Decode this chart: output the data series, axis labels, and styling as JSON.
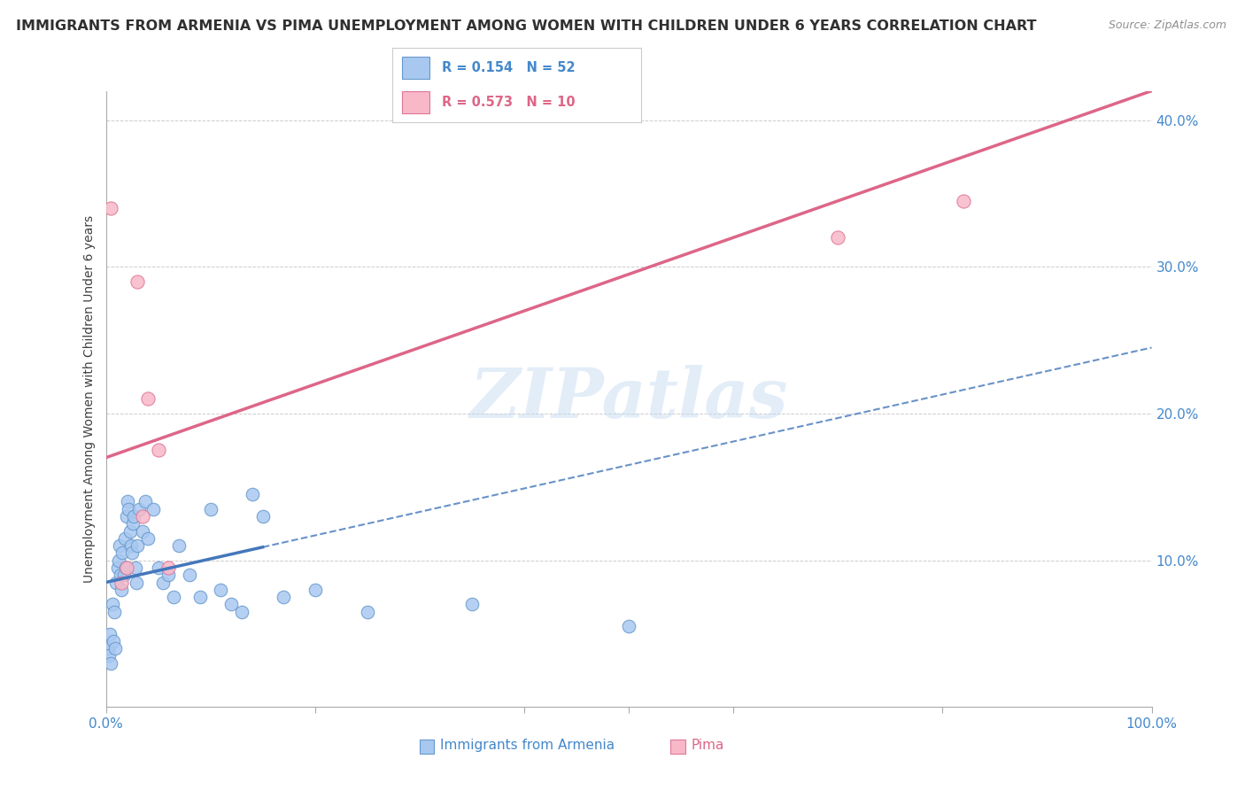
{
  "title": "IMMIGRANTS FROM ARMENIA VS PIMA UNEMPLOYMENT AMONG WOMEN WITH CHILDREN UNDER 6 YEARS CORRELATION CHART",
  "source": "Source: ZipAtlas.com",
  "ylabel": "Unemployment Among Women with Children Under 6 years",
  "legend_label1": "Immigrants from Armenia",
  "legend_label2": "Pima",
  "R1": 0.154,
  "N1": 52,
  "R2": 0.573,
  "N2": 10,
  "xlim": [
    0,
    100
  ],
  "ylim": [
    0,
    42
  ],
  "color_blue": "#A8C8F0",
  "color_blue_edge": "#6699CC",
  "color_blue_line": "#4477BB",
  "color_pink": "#F8B8C8",
  "color_pink_edge": "#DD7799",
  "color_pink_line": "#DD6688",
  "color_text_blue": "#4488CC",
  "color_text_pink": "#DD6688",
  "color_grid": "#CCCCCC",
  "blue_x": [
    0.2,
    0.3,
    0.4,
    0.5,
    0.6,
    0.7,
    0.8,
    0.9,
    1.0,
    1.1,
    1.2,
    1.3,
    1.4,
    1.5,
    1.6,
    1.7,
    1.8,
    1.9,
    2.0,
    2.1,
    2.2,
    2.3,
    2.4,
    2.5,
    2.6,
    2.7,
    2.8,
    2.9,
    3.0,
    3.2,
    3.5,
    3.8,
    4.0,
    4.5,
    5.0,
    5.5,
    6.0,
    6.5,
    7.0,
    8.0,
    9.0,
    10.0,
    11.0,
    12.0,
    13.0,
    14.0,
    15.0,
    17.0,
    20.0,
    25.0,
    35.0,
    50.0
  ],
  "blue_y": [
    4.0,
    3.5,
    5.0,
    3.0,
    7.0,
    4.5,
    6.5,
    4.0,
    8.5,
    9.5,
    10.0,
    11.0,
    9.0,
    8.0,
    10.5,
    9.0,
    11.5,
    9.5,
    13.0,
    14.0,
    13.5,
    12.0,
    11.0,
    10.5,
    12.5,
    13.0,
    9.5,
    8.5,
    11.0,
    13.5,
    12.0,
    14.0,
    11.5,
    13.5,
    9.5,
    8.5,
    9.0,
    7.5,
    11.0,
    9.0,
    7.5,
    13.5,
    8.0,
    7.0,
    6.5,
    14.5,
    13.0,
    7.5,
    8.0,
    6.5,
    7.0,
    5.5
  ],
  "pink_x": [
    0.5,
    3.0,
    1.5,
    2.0,
    3.5,
    4.0,
    5.0,
    6.0,
    70.0,
    82.0
  ],
  "pink_y": [
    34.0,
    29.0,
    8.5,
    9.5,
    13.0,
    21.0,
    17.5,
    9.5,
    32.0,
    34.5
  ],
  "blue_line_x0": 0,
  "blue_line_x1": 100,
  "blue_solid_end": 15,
  "pink_line_x0": 0,
  "pink_line_x1": 100,
  "watermark": "ZIPatlas",
  "background_color": "#FFFFFF"
}
